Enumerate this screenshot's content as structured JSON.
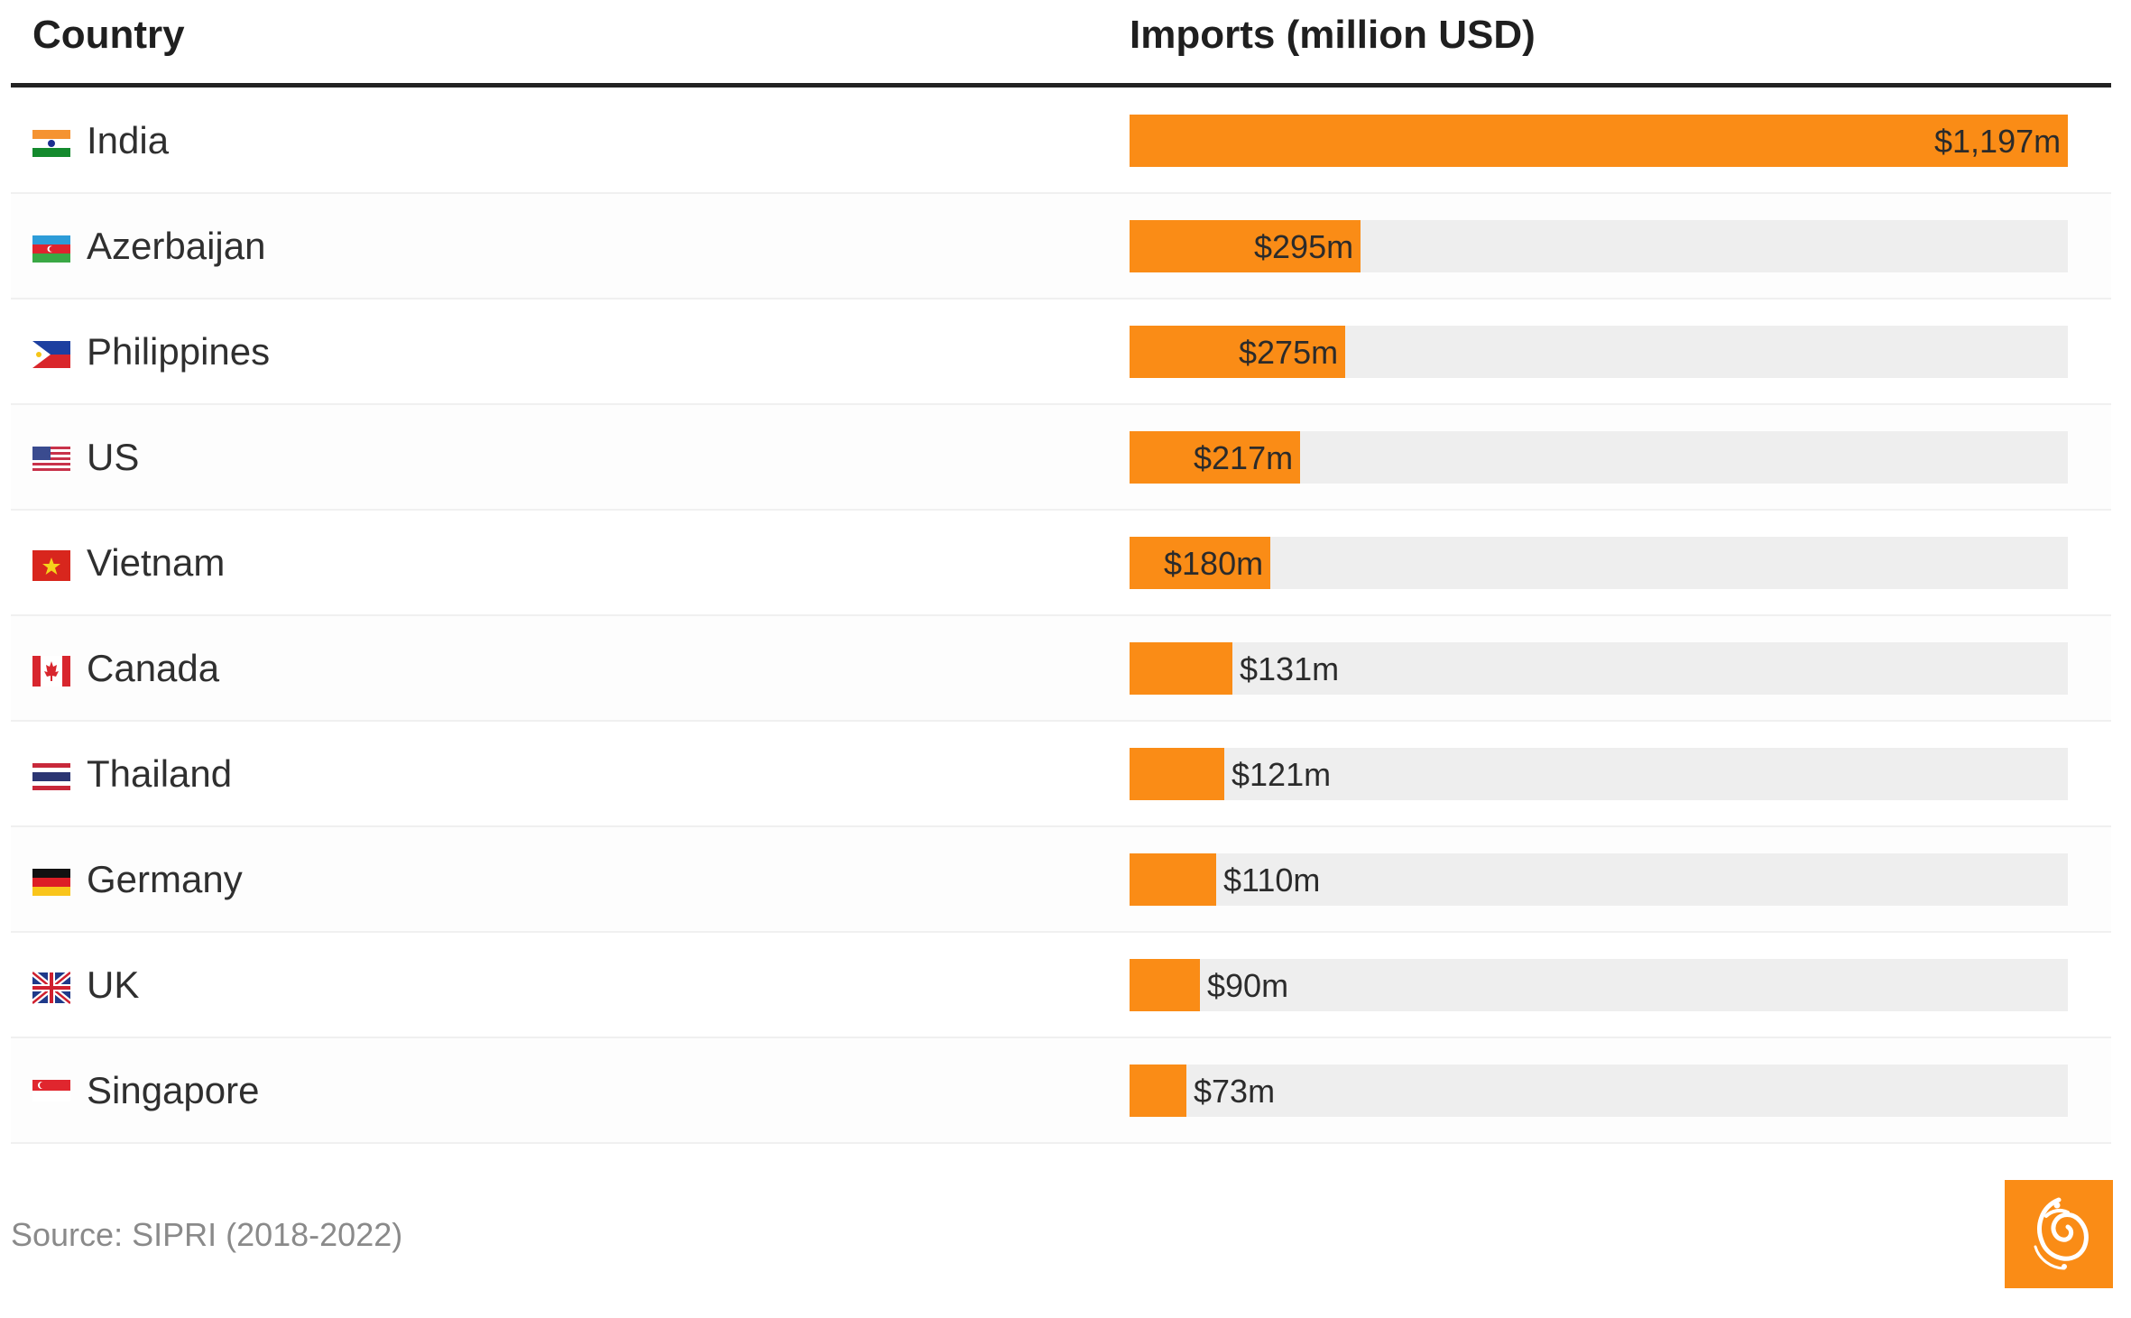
{
  "header": {
    "country_label": "Country",
    "imports_label": "Imports (million USD)"
  },
  "chart_data": {
    "type": "bar",
    "orientation": "horizontal",
    "title": "",
    "xlabel": "Imports (million USD)",
    "ylabel": "Country",
    "xlim": [
      0,
      1197
    ],
    "categories": [
      "India",
      "Azerbaijan",
      "Philippines",
      "US",
      "Vietnam",
      "Canada",
      "Thailand",
      "Germany",
      "UK",
      "Singapore"
    ],
    "values": [
      1197,
      295,
      275,
      217,
      180,
      131,
      121,
      110,
      90,
      73
    ],
    "value_labels": [
      "$1,197m",
      "$295m",
      "$275m",
      "$217m",
      "$180m",
      "$131m",
      "$121m",
      "$110m",
      "$90m",
      "$73m"
    ],
    "flags": [
      "india-flag-icon",
      "azerbaijan-flag-icon",
      "philippines-flag-icon",
      "us-flag-icon",
      "vietnam-flag-icon",
      "canada-flag-icon",
      "thailand-flag-icon",
      "germany-flag-icon",
      "uk-flag-icon",
      "singapore-flag-icon"
    ],
    "colors": {
      "bar": "#fa8c16",
      "track": "#eeeeee"
    }
  },
  "footer": {
    "source": "Source: SIPRI (2018-2022)",
    "logo_icon": "al-jazeera-logo-icon"
  }
}
